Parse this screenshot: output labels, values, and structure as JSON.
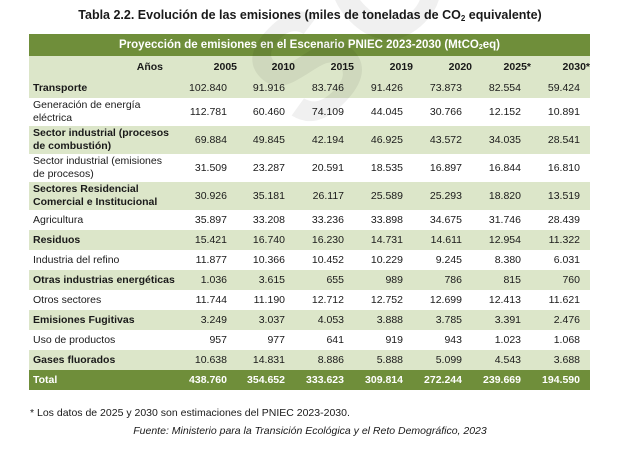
{
  "title": {
    "text": "Tabla 2.2. Evolución de las emisiones (miles de toneladas de CO",
    "sub": "2",
    "suffix": " equivalente)"
  },
  "watermark": "SCRIBD",
  "table": {
    "header_title": {
      "text": "Proyección de emisiones en el Escenario PNIEC 2023-2030 (MtCO",
      "sub": "2",
      "suffix": "eq)"
    },
    "years_label": "Años",
    "years": [
      "2005",
      "2010",
      "2015",
      "2019",
      "2020",
      "2025*",
      "2030*"
    ],
    "rows": [
      {
        "name": "Transporte",
        "values": [
          "102.840",
          "91.916",
          "83.746",
          "91.426",
          "73.873",
          "82.554",
          "59.424"
        ]
      },
      {
        "name": "Generación de energía eléctrica",
        "values": [
          "112.781",
          "60.460",
          "74.109",
          "44.045",
          "30.766",
          "12.152",
          "10.891"
        ]
      },
      {
        "name": "Sector industrial (procesos de combustión)",
        "values": [
          "69.884",
          "49.845",
          "42.194",
          "46.925",
          "43.572",
          "34.035",
          "28.541"
        ]
      },
      {
        "name": "Sector industrial (emisiones de procesos)",
        "values": [
          "31.509",
          "23.287",
          "20.591",
          "18.535",
          "16.897",
          "16.844",
          "16.810"
        ]
      },
      {
        "name": "Sectores Residencial Comercial e Institucional",
        "values": [
          "30.926",
          "35.181",
          "26.117",
          "25.589",
          "25.293",
          "18.820",
          "13.519"
        ]
      },
      {
        "name": "Agricultura",
        "values": [
          "35.897",
          "33.208",
          "33.236",
          "33.898",
          "34.675",
          "31.746",
          "28.439"
        ]
      },
      {
        "name": "Residuos",
        "values": [
          "15.421",
          "16.740",
          "16.230",
          "14.731",
          "14.611",
          "12.954",
          "11.322"
        ]
      },
      {
        "name": "Industria del refino",
        "values": [
          "11.877",
          "10.366",
          "10.452",
          "10.229",
          "9.245",
          "8.380",
          "6.031"
        ]
      },
      {
        "name": "Otras industrias energéticas",
        "values": [
          "1.036",
          "3.615",
          "655",
          "989",
          "786",
          "815",
          "760"
        ]
      },
      {
        "name": "Otros sectores",
        "values": [
          "11.744",
          "11.190",
          "12.712",
          "12.752",
          "12.699",
          "12.413",
          "11.621"
        ]
      },
      {
        "name": "Emisiones Fugitivas",
        "values": [
          "3.249",
          "3.037",
          "4.053",
          "3.888",
          "3.785",
          "3.391",
          "2.476"
        ]
      },
      {
        "name": "Uso de productos",
        "values": [
          "957",
          "977",
          "641",
          "919",
          "943",
          "1.023",
          "1.068"
        ]
      },
      {
        "name": "Gases fluorados",
        "values": [
          "10.638",
          "14.831",
          "8.886",
          "5.888",
          "5.099",
          "4.543",
          "3.688"
        ]
      }
    ],
    "total": {
      "name": "Total",
      "values": [
        "438.760",
        "354.652",
        "333.623",
        "309.814",
        "272.244",
        "239.669",
        "194.590"
      ]
    }
  },
  "note": "* Los datos de 2025 y 2030 son estimaciones del PNIEC 2023-2030.",
  "source": "Fuente: Ministerio para la Transición Ecológica y el Reto Demográfico, 2023",
  "colors": {
    "header_green": "#6f8e3a",
    "band_green": "#dce6c9"
  }
}
